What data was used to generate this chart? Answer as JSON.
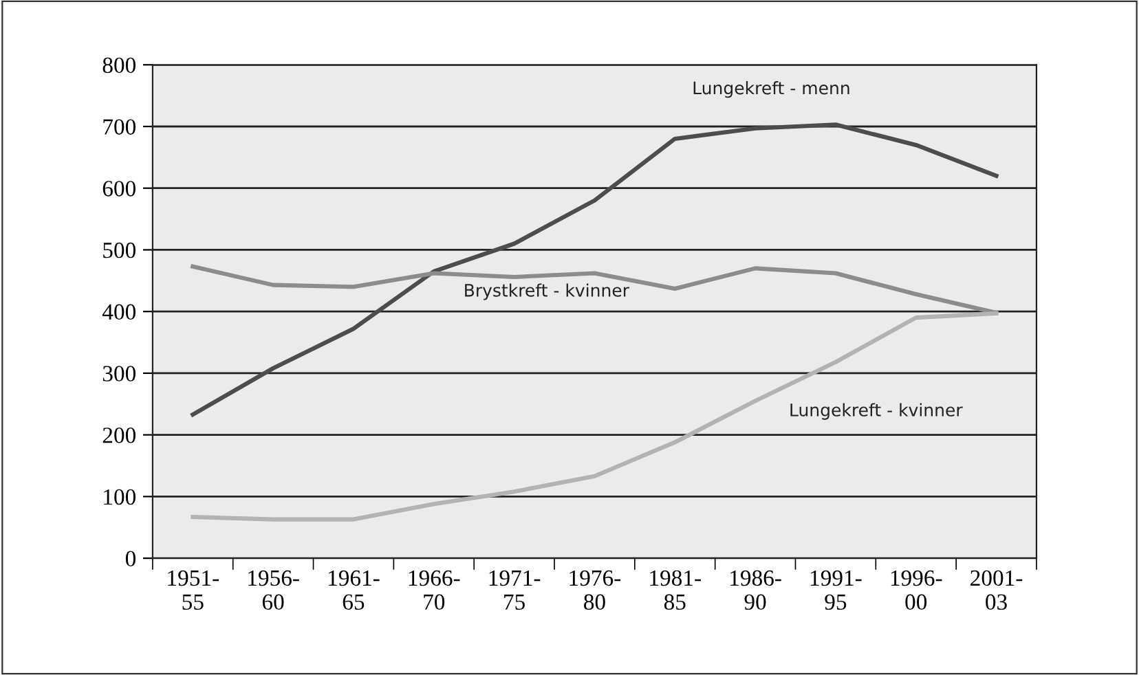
{
  "chart_data": {
    "type": "line",
    "categories": [
      "1951-\n55",
      "1956-\n60",
      "1961-\n65",
      "1966-\n70",
      "1971-\n75",
      "1976-\n80",
      "1981-\n85",
      "1986-\n90",
      "1991-\n95",
      "1996-\n00",
      "2001-\n03"
    ],
    "series": [
      {
        "name": "Lungekreft - menn",
        "color": "#4d4d4d",
        "values": [
          233,
          308,
          372,
          465,
          510,
          580,
          680,
          697,
          703,
          670,
          620
        ]
      },
      {
        "name": "Brystkreft - kvinner",
        "color": "#8c8c8c",
        "values": [
          473,
          443,
          440,
          462,
          456,
          462,
          437,
          470,
          462,
          428,
          398
        ]
      },
      {
        "name": "Lungekreft - kvinner",
        "color": "#b3b3b3",
        "values": [
          67,
          63,
          63,
          88,
          108,
          133,
          188,
          255,
          318,
          390,
          397
        ]
      }
    ],
    "ylim": [
      0,
      800
    ],
    "yticks": [
      0,
      100,
      200,
      300,
      400,
      500,
      600,
      700,
      800
    ],
    "grid": "y",
    "legend": false,
    "marker": "none",
    "line_style": "solid"
  }
}
